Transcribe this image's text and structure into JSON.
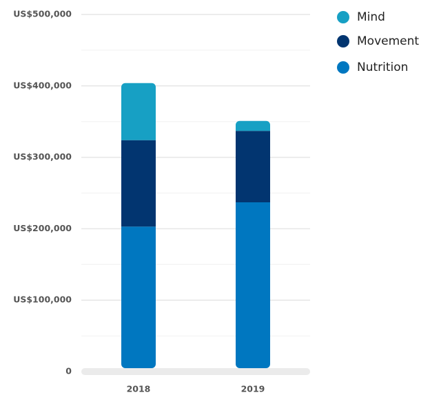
{
  "chart_data": {
    "type": "stacked_bar",
    "categories": [
      "2018",
      "2019"
    ],
    "series": [
      {
        "name": "Mind",
        "color": "#17a0c4",
        "values": [
          80000,
          14000
        ]
      },
      {
        "name": "Movement",
        "color": "#023570",
        "values": [
          121000,
          100000
        ]
      },
      {
        "name": "Nutrition",
        "color": "#0077c0",
        "values": [
          203000,
          237000
        ]
      }
    ],
    "ylim": [
      0,
      500000
    ],
    "yticks": [
      0,
      {
        "value": 100000,
        "label": "US$100,000"
      },
      {
        "value": 200000,
        "label": "US$200,000"
      },
      {
        "value": 300000,
        "label": "US$300,000"
      },
      {
        "value": 400000,
        "label": "US$400,000"
      },
      {
        "value": 500000,
        "label": "US$500,000"
      }
    ],
    "grid": true,
    "legend": "top-right"
  }
}
